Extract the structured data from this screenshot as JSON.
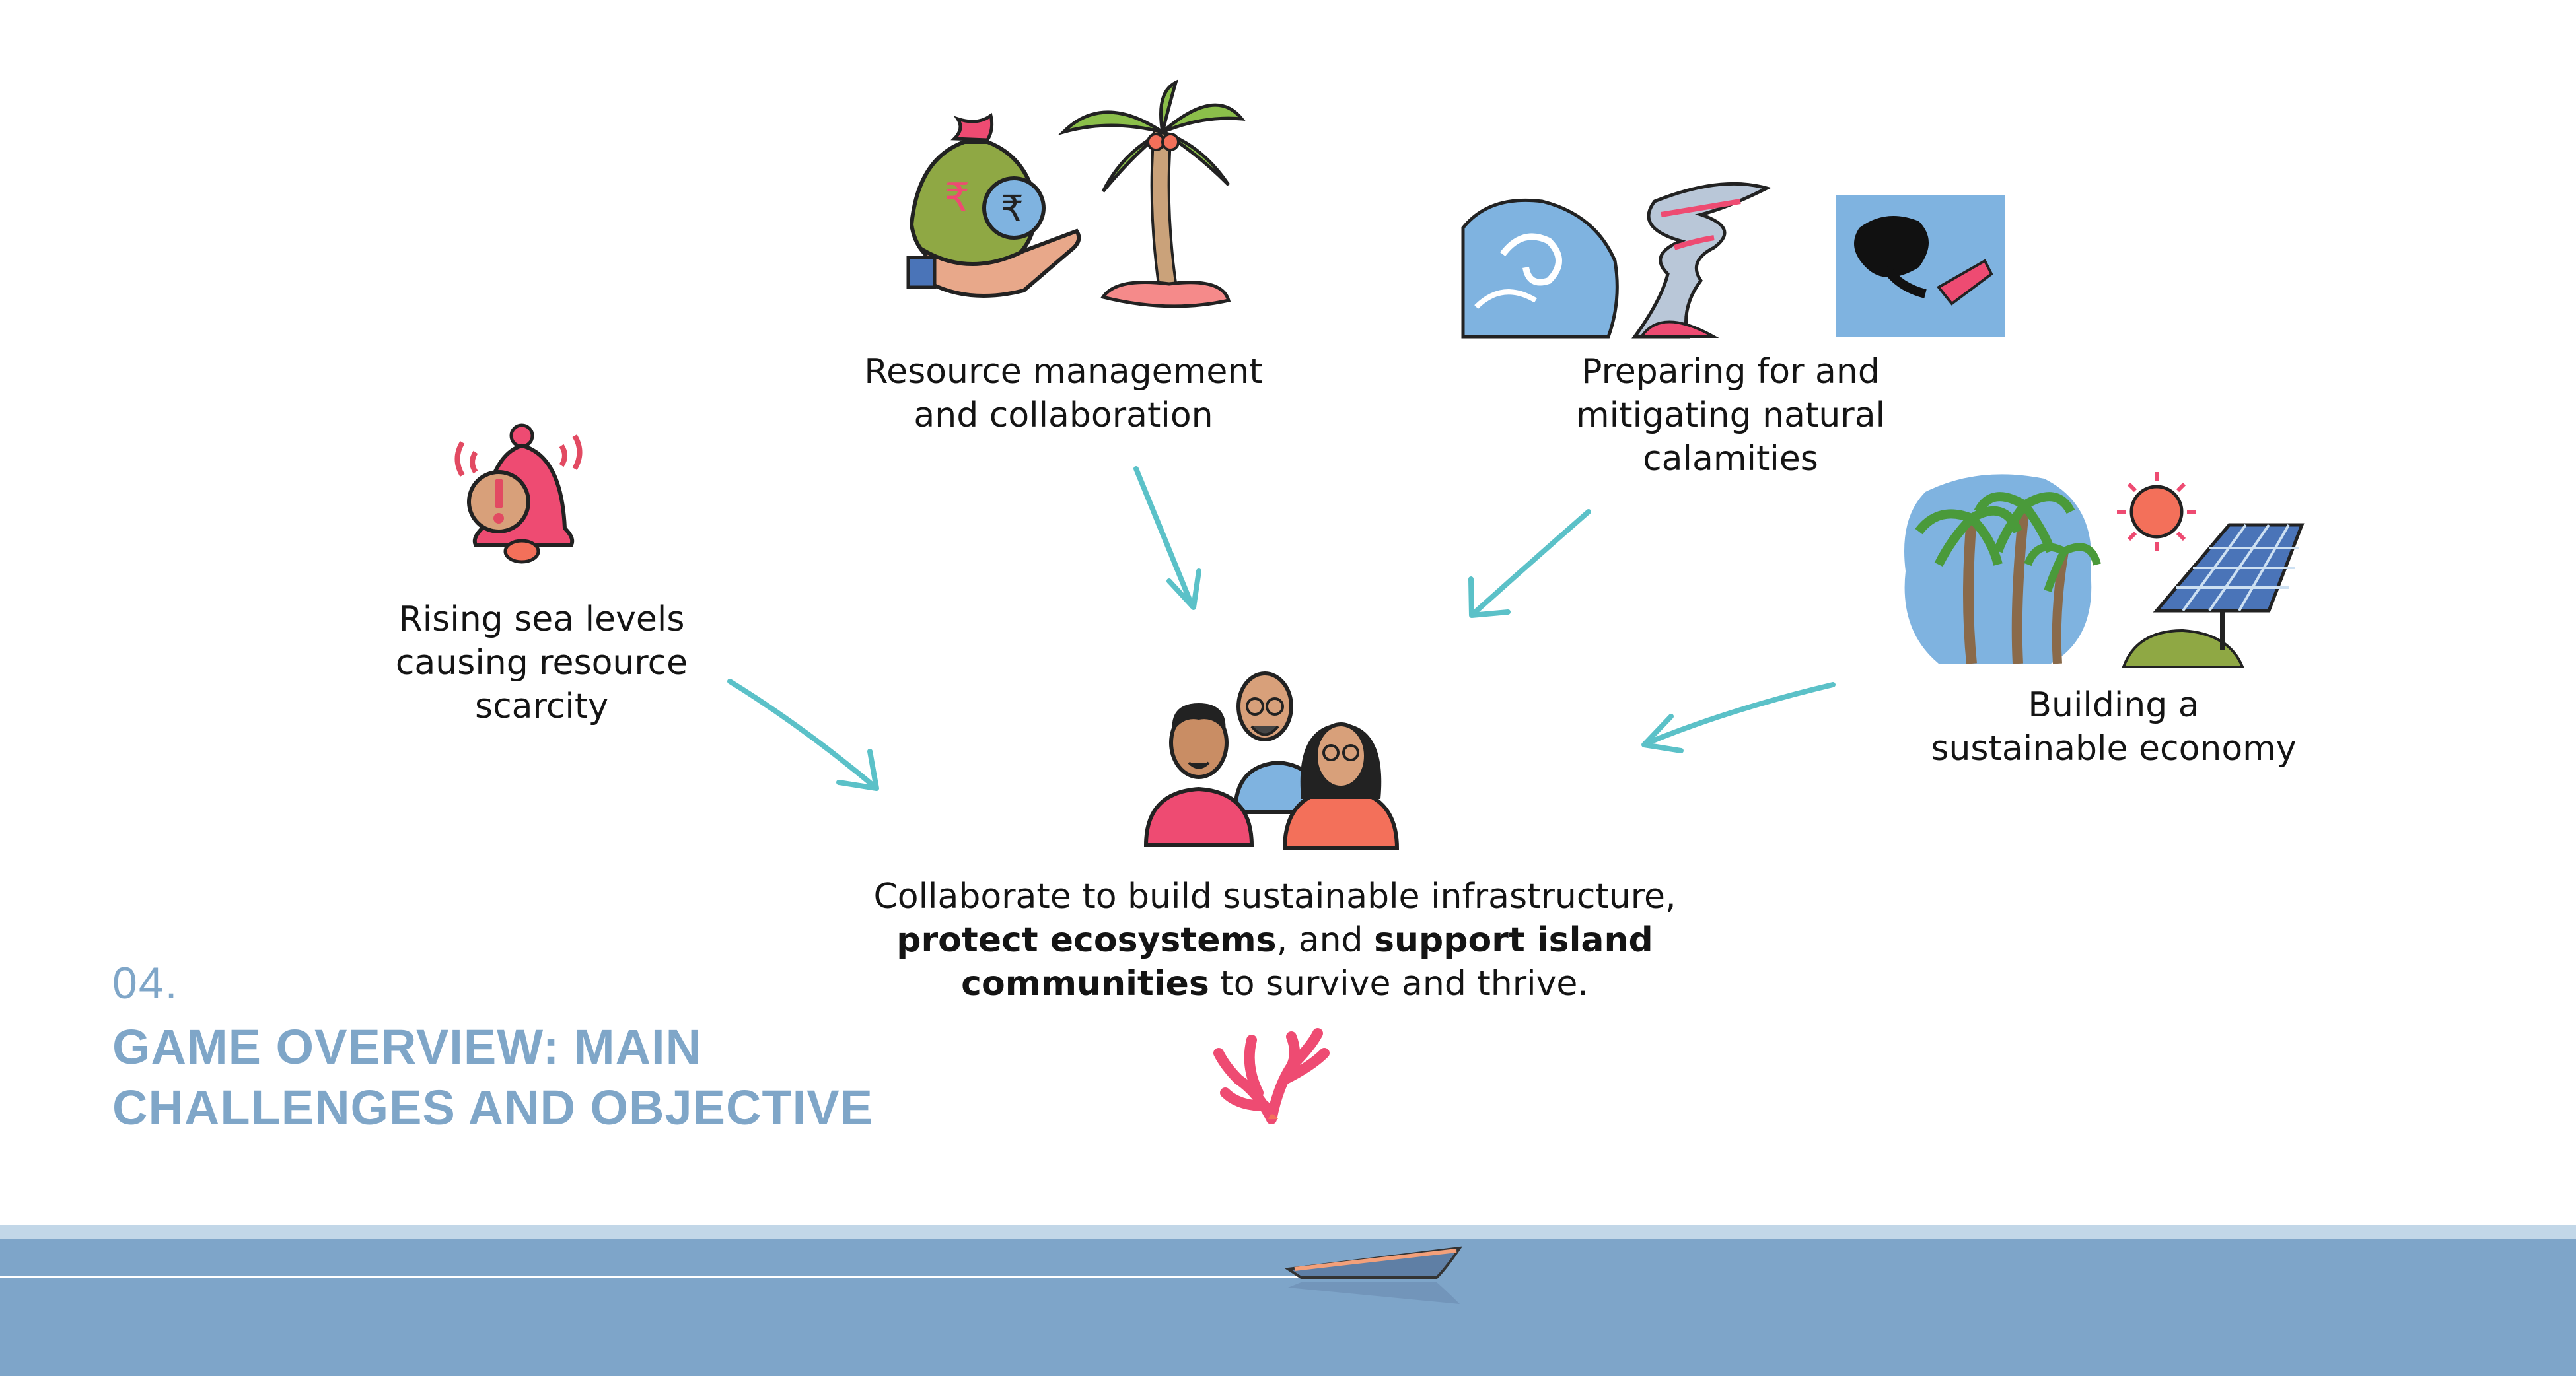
{
  "challenges": {
    "rising_sea": {
      "lines": [
        "Rising sea levels",
        "causing resource",
        "scarcity"
      ],
      "icon": "alarm-bell-icon"
    },
    "resources": {
      "lines": [
        "Resource management",
        "and collaboration"
      ],
      "icon": "money-bag-palm-icon"
    },
    "calamities": {
      "lines": [
        "Preparing for and",
        "mitigating natural",
        "calamities"
      ],
      "icon": "storm-wave-tornado-oilspill-icon"
    },
    "economy": {
      "lines": [
        "Building a",
        "sustainable economy"
      ],
      "icon": "palm-solar-panel-icon"
    }
  },
  "objective": {
    "part1": "Collaborate to build sustainable infrastructure,",
    "bold1": "protect ecosystems",
    "part2": ", and ",
    "bold2": "support island",
    "bold3": "communities",
    "part3": " to survive and thrive.",
    "icon": "community-people-icon",
    "coral_icon": "coral-icon"
  },
  "section": {
    "number": "04.",
    "title_line1": "GAME OVERVIEW: MAIN",
    "title_line2": "CHALLENGES AND OBJECTIVE"
  },
  "colors": {
    "arrow": "#5bc1c8",
    "heading": "#7fa6c8",
    "sea": "#7ea5c9",
    "sea_light": "#c2d7e8",
    "accent_pink": "#ee4b72",
    "accent_coral": "#f3705a"
  }
}
